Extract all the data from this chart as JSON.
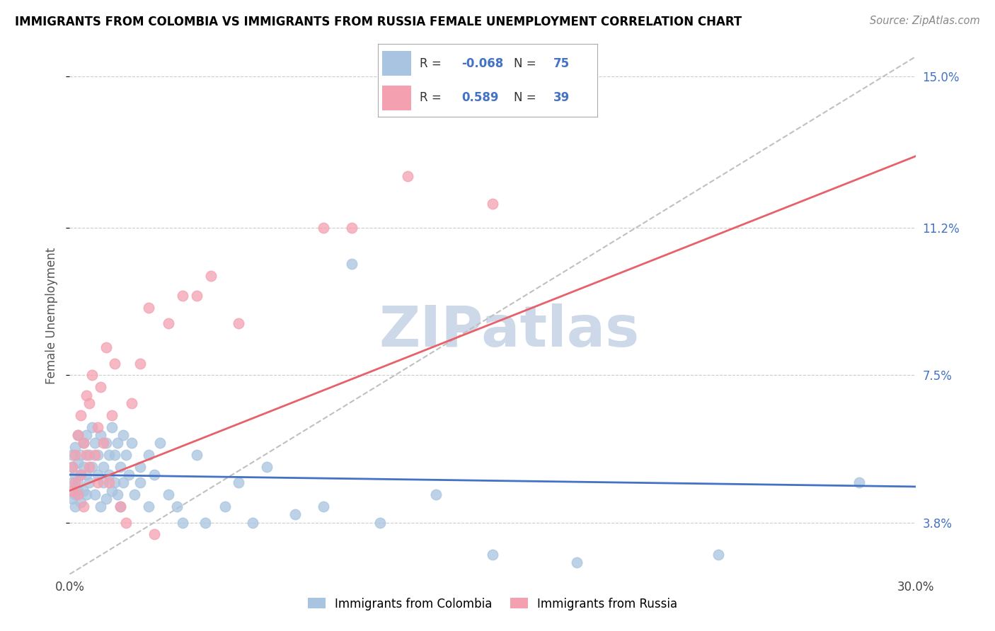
{
  "title": "IMMIGRANTS FROM COLOMBIA VS IMMIGRANTS FROM RUSSIA FEMALE UNEMPLOYMENT CORRELATION CHART",
  "source": "Source: ZipAtlas.com",
  "ylabel": "Female Unemployment",
  "xlim": [
    0.0,
    0.3
  ],
  "ylim": [
    0.025,
    0.155
  ],
  "yticks": [
    0.038,
    0.075,
    0.112,
    0.15
  ],
  "ytick_labels": [
    "3.8%",
    "7.5%",
    "11.2%",
    "15.0%"
  ],
  "xticks": [
    0.0,
    0.05,
    0.1,
    0.15,
    0.2,
    0.25,
    0.3
  ],
  "xtick_labels": [
    "0.0%",
    "",
    "",
    "",
    "",
    "",
    "30.0%"
  ],
  "colombia_color": "#a8c4e0",
  "russia_color": "#f4a0b0",
  "colombia_line_color": "#4472c4",
  "russia_line_color": "#e8606a",
  "grid_color": "#cccccc",
  "watermark": "ZIPatlas",
  "watermark_color": "#cdd8e8",
  "legend_R_colombia": "-0.068",
  "legend_N_colombia": "75",
  "legend_R_russia": "0.589",
  "legend_N_russia": "39",
  "colombia_trend": [
    0.05,
    0.047
  ],
  "russia_trend": [
    0.046,
    0.13
  ],
  "colombia_scatter": [
    [
      0.001,
      0.052
    ],
    [
      0.001,
      0.048
    ],
    [
      0.001,
      0.055
    ],
    [
      0.001,
      0.044
    ],
    [
      0.002,
      0.05
    ],
    [
      0.002,
      0.057
    ],
    [
      0.002,
      0.045
    ],
    [
      0.002,
      0.042
    ],
    [
      0.003,
      0.053
    ],
    [
      0.003,
      0.06
    ],
    [
      0.003,
      0.048
    ],
    [
      0.003,
      0.046
    ],
    [
      0.004,
      0.055
    ],
    [
      0.004,
      0.05
    ],
    [
      0.004,
      0.043
    ],
    [
      0.005,
      0.058
    ],
    [
      0.005,
      0.052
    ],
    [
      0.005,
      0.046
    ],
    [
      0.006,
      0.06
    ],
    [
      0.006,
      0.05
    ],
    [
      0.006,
      0.045
    ],
    [
      0.007,
      0.055
    ],
    [
      0.007,
      0.048
    ],
    [
      0.008,
      0.062
    ],
    [
      0.008,
      0.052
    ],
    [
      0.009,
      0.058
    ],
    [
      0.009,
      0.045
    ],
    [
      0.01,
      0.055
    ],
    [
      0.01,
      0.05
    ],
    [
      0.011,
      0.06
    ],
    [
      0.011,
      0.042
    ],
    [
      0.012,
      0.052
    ],
    [
      0.012,
      0.048
    ],
    [
      0.013,
      0.058
    ],
    [
      0.013,
      0.044
    ],
    [
      0.014,
      0.055
    ],
    [
      0.014,
      0.05
    ],
    [
      0.015,
      0.062
    ],
    [
      0.015,
      0.046
    ],
    [
      0.016,
      0.055
    ],
    [
      0.016,
      0.048
    ],
    [
      0.017,
      0.058
    ],
    [
      0.017,
      0.045
    ],
    [
      0.018,
      0.052
    ],
    [
      0.018,
      0.042
    ],
    [
      0.019,
      0.06
    ],
    [
      0.019,
      0.048
    ],
    [
      0.02,
      0.055
    ],
    [
      0.021,
      0.05
    ],
    [
      0.022,
      0.058
    ],
    [
      0.023,
      0.045
    ],
    [
      0.025,
      0.052
    ],
    [
      0.025,
      0.048
    ],
    [
      0.028,
      0.055
    ],
    [
      0.028,
      0.042
    ],
    [
      0.03,
      0.05
    ],
    [
      0.032,
      0.058
    ],
    [
      0.035,
      0.045
    ],
    [
      0.038,
      0.042
    ],
    [
      0.04,
      0.038
    ],
    [
      0.045,
      0.055
    ],
    [
      0.048,
      0.038
    ],
    [
      0.055,
      0.042
    ],
    [
      0.06,
      0.048
    ],
    [
      0.065,
      0.038
    ],
    [
      0.07,
      0.052
    ],
    [
      0.08,
      0.04
    ],
    [
      0.09,
      0.042
    ],
    [
      0.1,
      0.103
    ],
    [
      0.11,
      0.038
    ],
    [
      0.13,
      0.045
    ],
    [
      0.15,
      0.03
    ],
    [
      0.18,
      0.028
    ],
    [
      0.23,
      0.03
    ],
    [
      0.28,
      0.048
    ]
  ],
  "russia_scatter": [
    [
      0.001,
      0.052
    ],
    [
      0.001,
      0.046
    ],
    [
      0.002,
      0.055
    ],
    [
      0.002,
      0.048
    ],
    [
      0.003,
      0.06
    ],
    [
      0.003,
      0.045
    ],
    [
      0.004,
      0.065
    ],
    [
      0.004,
      0.05
    ],
    [
      0.005,
      0.058
    ],
    [
      0.005,
      0.042
    ],
    [
      0.006,
      0.07
    ],
    [
      0.006,
      0.055
    ],
    [
      0.007,
      0.052
    ],
    [
      0.007,
      0.068
    ],
    [
      0.008,
      0.075
    ],
    [
      0.009,
      0.055
    ],
    [
      0.01,
      0.062
    ],
    [
      0.01,
      0.048
    ],
    [
      0.011,
      0.072
    ],
    [
      0.012,
      0.058
    ],
    [
      0.013,
      0.082
    ],
    [
      0.014,
      0.048
    ],
    [
      0.015,
      0.065
    ],
    [
      0.016,
      0.078
    ],
    [
      0.018,
      0.042
    ],
    [
      0.02,
      0.038
    ],
    [
      0.022,
      0.068
    ],
    [
      0.025,
      0.078
    ],
    [
      0.028,
      0.092
    ],
    [
      0.03,
      0.035
    ],
    [
      0.035,
      0.088
    ],
    [
      0.04,
      0.095
    ],
    [
      0.045,
      0.095
    ],
    [
      0.05,
      0.1
    ],
    [
      0.06,
      0.088
    ],
    [
      0.09,
      0.112
    ],
    [
      0.1,
      0.112
    ],
    [
      0.12,
      0.125
    ],
    [
      0.15,
      0.118
    ]
  ]
}
